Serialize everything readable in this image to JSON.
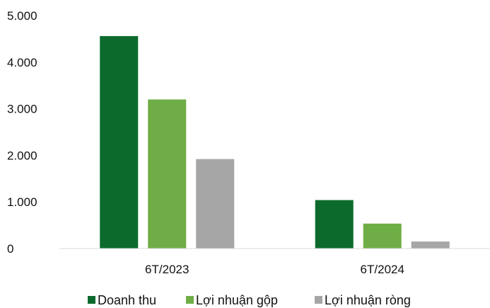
{
  "chart_data": {
    "type": "bar",
    "categories": [
      "6T/2023",
      "6T/2024"
    ],
    "series": [
      {
        "name": "Doanh thu",
        "color": "#0c6b2c",
        "values": [
          4560,
          1040
        ]
      },
      {
        "name": "Lợi nhuận gộp",
        "color": "#6fae46",
        "values": [
          3200,
          535
        ]
      },
      {
        "name": "Lợi nhuận ròng",
        "color": "#a6a6a6",
        "values": [
          1920,
          150
        ]
      }
    ],
    "ylim": [
      0,
      5000
    ],
    "yticks": [
      0,
      1000,
      2000,
      3000,
      4000,
      5000
    ],
    "ytick_labels": [
      "0",
      "1.000",
      "2.000",
      "3.000",
      "4.000",
      "5.000"
    ],
    "grid": false,
    "legend_position": "bottom"
  }
}
